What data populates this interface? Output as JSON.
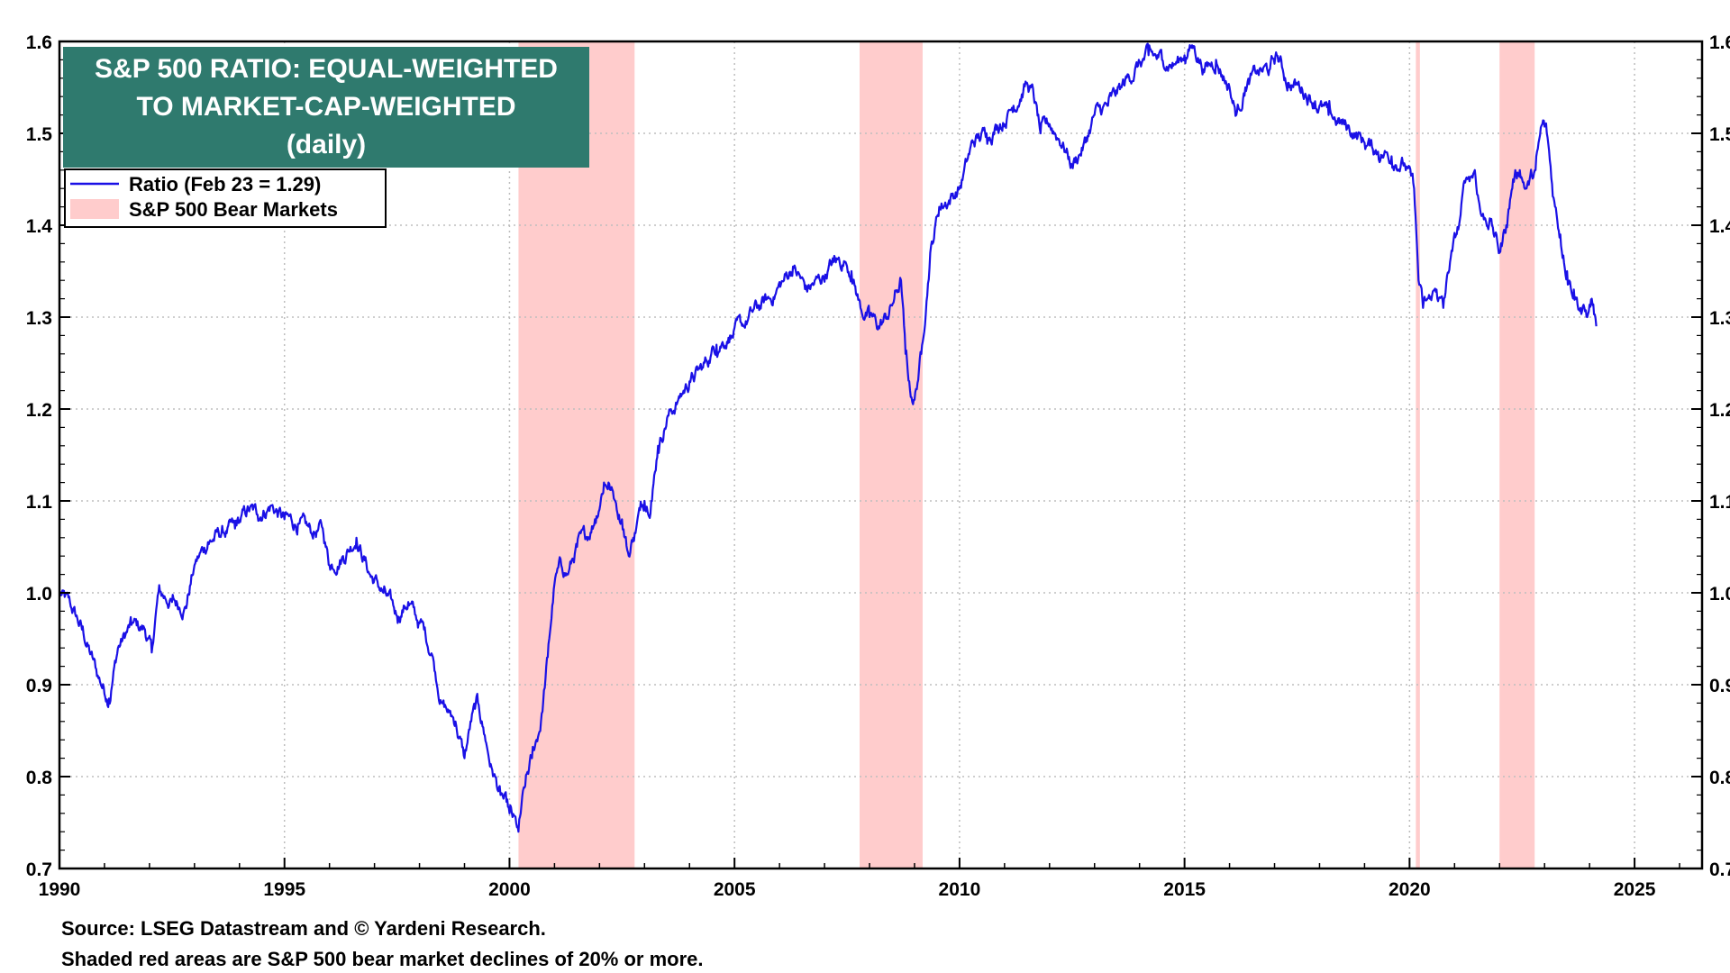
{
  "colors": {
    "line": "#1a10e6",
    "bear": "#ffcccc",
    "title_bg": "#2f7a6e",
    "grid": "#bdbdbd"
  },
  "chart_data": {
    "type": "line",
    "title": "S&P 500 RATIO: EQUAL-WEIGHTED TO MARKET-CAP-WEIGHTED (daily)",
    "title_lines": [
      "S&P 500 RATIO: EQUAL-WEIGHTED",
      "TO MARKET-CAP-WEIGHTED",
      "(daily)"
    ],
    "xlim": [
      1990,
      2026.5
    ],
    "ylim": [
      0.7,
      1.6
    ],
    "x_ticks": [
      1990,
      1995,
      2000,
      2005,
      2010,
      2015,
      2020,
      2025
    ],
    "y_ticks": [
      0.7,
      0.8,
      0.9,
      1.0,
      1.1,
      1.2,
      1.3,
      1.4,
      1.5,
      1.6
    ],
    "y_tick_labels": [
      "0.7",
      "0.8",
      "0.9",
      "1.0",
      "1.1",
      "1.2",
      "1.3",
      "1.4",
      "1.5",
      "1.6"
    ],
    "grid": true,
    "legend_position": "top-left",
    "legend": {
      "series_label": "Ratio (Feb 23 = 1.29)",
      "bear_label": "S&P 500 Bear Markets"
    },
    "bear_markets": [
      {
        "start": 2000.2,
        "end": 2002.78
      },
      {
        "start": 2007.78,
        "end": 2009.18
      },
      {
        "start": 2020.14,
        "end": 2020.23
      },
      {
        "start": 2022.0,
        "end": 2022.78
      }
    ],
    "series": [
      {
        "name": "Ratio (Feb 23 = 1.29)",
        "x": [
          1990.0,
          1990.25,
          1990.5,
          1990.85,
          1991.1,
          1991.3,
          1991.6,
          1991.9,
          1992.05,
          1992.2,
          1992.5,
          1992.8,
          1993.0,
          1993.3,
          1993.6,
          1993.9,
          1994.2,
          1994.4,
          1994.7,
          1995.0,
          1995.3,
          1995.6,
          1995.85,
          1996.0,
          1996.3,
          1996.6,
          1996.9,
          1997.2,
          1997.5,
          1997.75,
          1997.95,
          1998.1,
          1998.3,
          1998.5,
          1998.65,
          1998.8,
          1999.0,
          1999.15,
          1999.3,
          1999.45,
          1999.6,
          1999.8,
          2000.0,
          2000.2,
          2000.35,
          2000.5,
          2000.7,
          2000.85,
          2001.0,
          2001.15,
          2001.3,
          2001.5,
          2001.7,
          2001.9,
          2002.1,
          2002.2,
          2002.35,
          2002.5,
          2002.65,
          2002.75,
          2002.9,
          2003.0,
          2003.15,
          2003.3,
          2003.5,
          2003.75,
          2004.0,
          2004.3,
          2004.6,
          2004.9,
          2005.2,
          2005.5,
          2005.8,
          2006.1,
          2006.3,
          2006.6,
          2006.9,
          2007.2,
          2007.45,
          2007.6,
          2007.8,
          2008.0,
          2008.2,
          2008.4,
          2008.55,
          2008.7,
          2008.8,
          2008.9,
          2009.0,
          2009.15,
          2009.35,
          2009.55,
          2009.8,
          2010.0,
          2010.3,
          2010.6,
          2010.9,
          2011.2,
          2011.5,
          2011.65,
          2011.8,
          2012.0,
          2012.3,
          2012.5,
          2012.8,
          2013.0,
          2013.3,
          2013.6,
          2013.9,
          2014.2,
          2014.5,
          2014.8,
          2015.0,
          2015.2,
          2015.45,
          2015.7,
          2016.0,
          2016.15,
          2016.35,
          2016.6,
          2016.9,
          2017.05,
          2017.3,
          2017.6,
          2017.9,
          2018.2,
          2018.5,
          2018.8,
          2019.0,
          2019.3,
          2019.6,
          2019.9,
          2020.1,
          2020.2,
          2020.3,
          2020.45,
          2020.6,
          2020.75,
          2020.9,
          2021.1,
          2021.25,
          2021.45,
          2021.6,
          2021.8,
          2022.0,
          2022.15,
          2022.3,
          2022.45,
          2022.6,
          2022.8,
          2022.95,
          2023.05,
          2023.2,
          2023.35,
          2023.5,
          2023.65,
          2023.8,
          2023.95,
          2024.05,
          2024.15
        ],
        "values": [
          1.0,
          0.985,
          0.96,
          0.91,
          0.885,
          0.94,
          0.965,
          0.96,
          0.935,
          1.0,
          0.99,
          0.985,
          1.03,
          1.055,
          1.065,
          1.07,
          1.09,
          1.085,
          1.095,
          1.08,
          1.075,
          1.065,
          1.07,
          1.03,
          1.04,
          1.06,
          1.02,
          1.0,
          0.975,
          0.99,
          0.97,
          0.96,
          0.93,
          0.88,
          0.87,
          0.86,
          0.82,
          0.86,
          0.88,
          0.845,
          0.81,
          0.78,
          0.76,
          0.74,
          0.79,
          0.82,
          0.86,
          0.93,
          1.01,
          1.03,
          1.02,
          1.05,
          1.06,
          1.08,
          1.12,
          1.12,
          1.1,
          1.08,
          1.04,
          1.06,
          1.09,
          1.1,
          1.1,
          1.16,
          1.19,
          1.21,
          1.23,
          1.245,
          1.27,
          1.28,
          1.29,
          1.31,
          1.32,
          1.34,
          1.355,
          1.33,
          1.34,
          1.36,
          1.36,
          1.35,
          1.31,
          1.3,
          1.29,
          1.3,
          1.32,
          1.34,
          1.26,
          1.22,
          1.21,
          1.26,
          1.37,
          1.42,
          1.43,
          1.44,
          1.49,
          1.5,
          1.51,
          1.53,
          1.555,
          1.54,
          1.5,
          1.51,
          1.49,
          1.465,
          1.49,
          1.52,
          1.53,
          1.55,
          1.57,
          1.585,
          1.58,
          1.575,
          1.585,
          1.595,
          1.57,
          1.58,
          1.55,
          1.52,
          1.55,
          1.565,
          1.57,
          1.585,
          1.555,
          1.55,
          1.535,
          1.52,
          1.51,
          1.5,
          1.49,
          1.48,
          1.475,
          1.465,
          1.44,
          1.34,
          1.31,
          1.32,
          1.33,
          1.31,
          1.36,
          1.4,
          1.45,
          1.46,
          1.41,
          1.405,
          1.37,
          1.4,
          1.45,
          1.46,
          1.44,
          1.46,
          1.51,
          1.5,
          1.43,
          1.39,
          1.35,
          1.33,
          1.31,
          1.3,
          1.32,
          1.29
        ]
      }
    ],
    "source_lines": [
      "Source: LSEG Datastream and © Yardeni Research.",
      "Shaded red areas are S&P 500 bear market declines of 20% or more."
    ]
  }
}
